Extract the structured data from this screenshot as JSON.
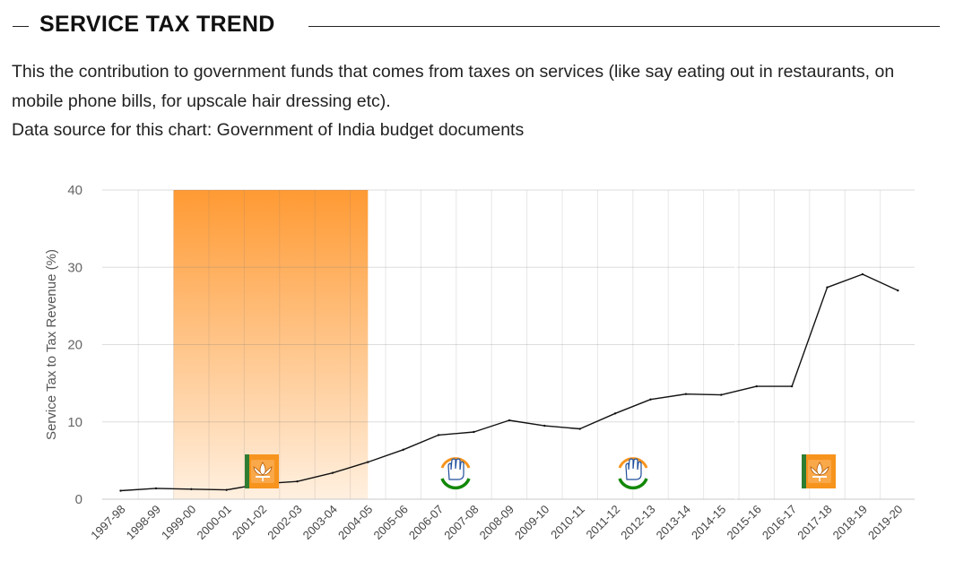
{
  "header": {
    "title": "SERVICE TAX TREND"
  },
  "description": {
    "text": "This the contribution to government funds that comes from taxes on services (like say eating out in restaurants, on mobile phone bills, for upscale hair dressing etc).",
    "source": "Data source for this chart: Government of India budget documents"
  },
  "chart_data": {
    "type": "line",
    "title": "",
    "xlabel": "",
    "ylabel": "Service Tax to Tax Revenue (%)",
    "ylim": [
      0,
      40
    ],
    "yticks": [
      0,
      10,
      20,
      30,
      40
    ],
    "grid": true,
    "categories": [
      "1997-98",
      "1998-99",
      "1999-00",
      "2000-01",
      "2001-02",
      "2002-03",
      "2003-04",
      "2004-05",
      "2005-06",
      "2006-07",
      "2007-08",
      "2008-09",
      "2009-10",
      "2010-11",
      "2011-12",
      "2012-13",
      "2013-14",
      "2014-15",
      "2015-16",
      "2016-17",
      "2017-18",
      "2018-19",
      "2019-20"
    ],
    "series": [
      {
        "values": [
          1.1,
          1.4,
          1.3,
          1.2,
          2.0,
          2.3,
          3.4,
          4.8,
          6.4,
          8.3,
          8.7,
          10.2,
          9.5,
          9.1,
          11.1,
          12.9,
          13.6,
          13.5,
          14.6,
          14.6,
          27.4,
          29.1,
          27.0
        ]
      }
    ],
    "bands": [
      {
        "from": "1998-99",
        "to": "2004-05",
        "party": "BJP",
        "color_top": "#ff9a33",
        "color_bottom": "#fff0e0",
        "icon": "lotus-icon"
      },
      {
        "from": "2004-05",
        "to": "2009-10",
        "party": "INC",
        "color_top": "#5aa9d6",
        "color_bottom": "#d2ecfa",
        "icon": "hand-icon"
      },
      {
        "from": "2009-10",
        "to": "2014-15",
        "party": "INC",
        "color_top": "#5aa9d6",
        "color_bottom": "#d2ecfa",
        "icon": "hand-icon"
      },
      {
        "from": "2014-15",
        "to": "2019-20",
        "party": "BJP",
        "color_top": "#ff9a33",
        "color_bottom": "#fff0e0",
        "icon": "lotus-icon"
      }
    ],
    "line_color": "#111111"
  }
}
